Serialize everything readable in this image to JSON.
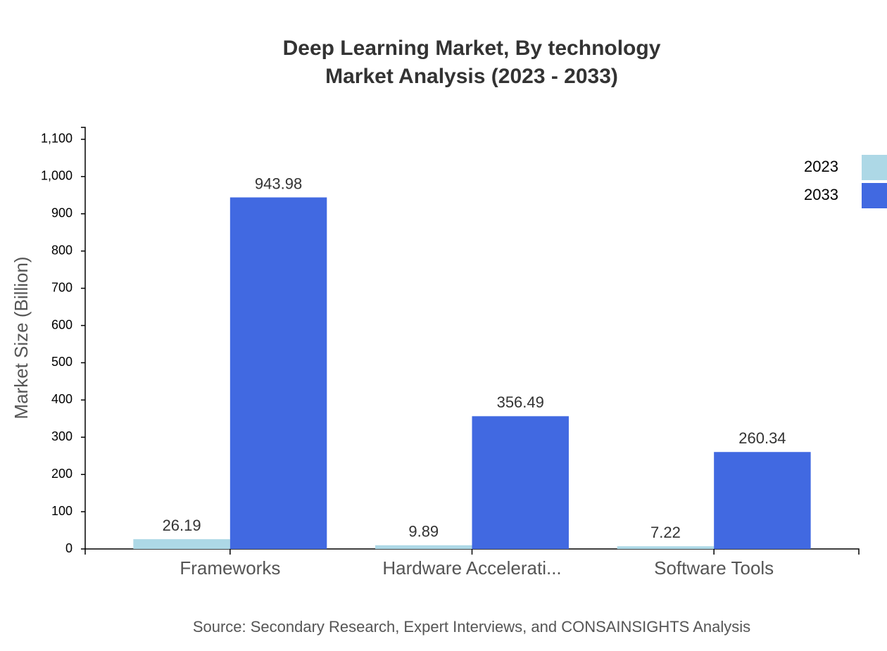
{
  "chart_data": {
    "type": "bar",
    "title": "Deep Learning Market, By technology",
    "subtitle": "Market Analysis (2023 - 2033)",
    "y_axis_label": "Market Size (Billion)",
    "source": "Source: Secondary Research, Expert Interviews, and CONSAINSIGHTS Analysis",
    "categories": [
      "Frameworks",
      "Hardware Accelerati...",
      "Software Tools"
    ],
    "series": [
      {
        "name": "2023",
        "color": "#add8e6",
        "values": [
          26.19,
          9.89,
          7.22
        ]
      },
      {
        "name": "2033",
        "color": "#4169e1",
        "values": [
          943.98,
          356.49,
          260.34
        ]
      }
    ],
    "ylim": [
      0,
      1132
    ],
    "yticks": [
      0,
      100,
      200,
      300,
      400,
      500,
      600,
      700,
      800,
      900,
      {
        "value": 1000,
        "label": "1,000"
      },
      {
        "value": 1100,
        "label": "1,100"
      }
    ],
    "legend": "top-right"
  }
}
